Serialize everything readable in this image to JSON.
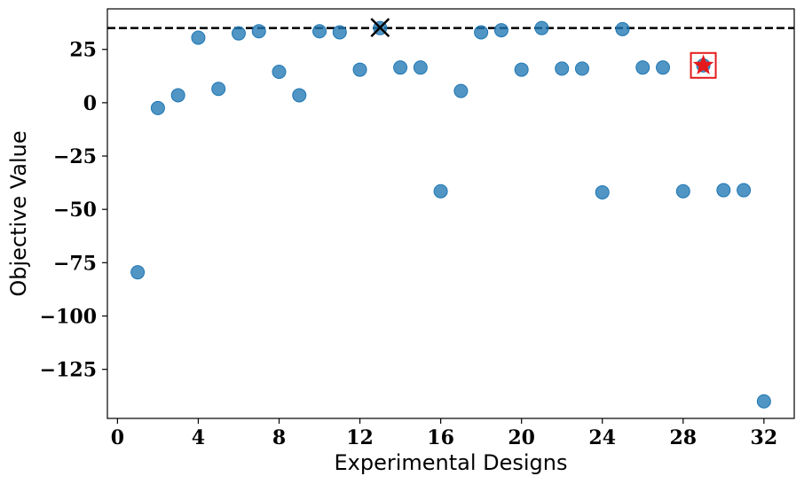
{
  "chart_data": {
    "type": "scatter",
    "xlabel": "Experimental Designs",
    "ylabel": "Objective Value",
    "xlim": [
      -0.5,
      33.5
    ],
    "ylim": [
      -148,
      44
    ],
    "xticks": [
      0,
      4,
      8,
      12,
      16,
      20,
      24,
      28,
      32
    ],
    "xtick_labels": [
      "0",
      "4",
      "8",
      "12",
      "16",
      "20",
      "24",
      "28",
      "32"
    ],
    "yticks": [
      25,
      0,
      -25,
      -50,
      -75,
      -100,
      -125
    ],
    "ytick_labels": [
      "25",
      "0",
      "−25",
      "−50",
      "−75",
      "−100",
      "−125"
    ],
    "grid": false,
    "reference_line": {
      "y": 35,
      "style": "dashed",
      "color": "#000000"
    },
    "best_marker": {
      "x": 13,
      "y": 35.2,
      "symbol": "x-cross",
      "color": "#000000"
    },
    "highlight_marker": {
      "x": 29,
      "y": 17.5,
      "symbol": "star-in-square",
      "star_color": "#e41a1c",
      "box_color": "#e41a1c"
    },
    "point_color": "#1f77b4",
    "points": [
      {
        "x": 1,
        "y": -79.5
      },
      {
        "x": 2,
        "y": -2.5
      },
      {
        "x": 3,
        "y": 3.5
      },
      {
        "x": 4,
        "y": 30.5
      },
      {
        "x": 5,
        "y": 6.5
      },
      {
        "x": 6,
        "y": 32.5
      },
      {
        "x": 7,
        "y": 33.5
      },
      {
        "x": 8,
        "y": 14.5
      },
      {
        "x": 9,
        "y": 3.5
      },
      {
        "x": 10,
        "y": 33.5
      },
      {
        "x": 11,
        "y": 33.0
      },
      {
        "x": 12,
        "y": 15.5
      },
      {
        "x": 13,
        "y": 35.0
      },
      {
        "x": 14,
        "y": 16.5
      },
      {
        "x": 15,
        "y": 16.5
      },
      {
        "x": 16,
        "y": -41.5
      },
      {
        "x": 17,
        "y": 5.5
      },
      {
        "x": 18,
        "y": 33.0
      },
      {
        "x": 19,
        "y": 34.0
      },
      {
        "x": 20,
        "y": 15.5
      },
      {
        "x": 21,
        "y": 35.0
      },
      {
        "x": 22,
        "y": 16.0
      },
      {
        "x": 23,
        "y": 16.0
      },
      {
        "x": 24,
        "y": -42.0
      },
      {
        "x": 25,
        "y": 34.5
      },
      {
        "x": 26,
        "y": 16.5
      },
      {
        "x": 27,
        "y": 16.5
      },
      {
        "x": 28,
        "y": -41.5
      },
      {
        "x": 29,
        "y": 17.5
      },
      {
        "x": 30,
        "y": -41.0
      },
      {
        "x": 31,
        "y": -41.0
      },
      {
        "x": 32,
        "y": -140.0
      }
    ]
  }
}
